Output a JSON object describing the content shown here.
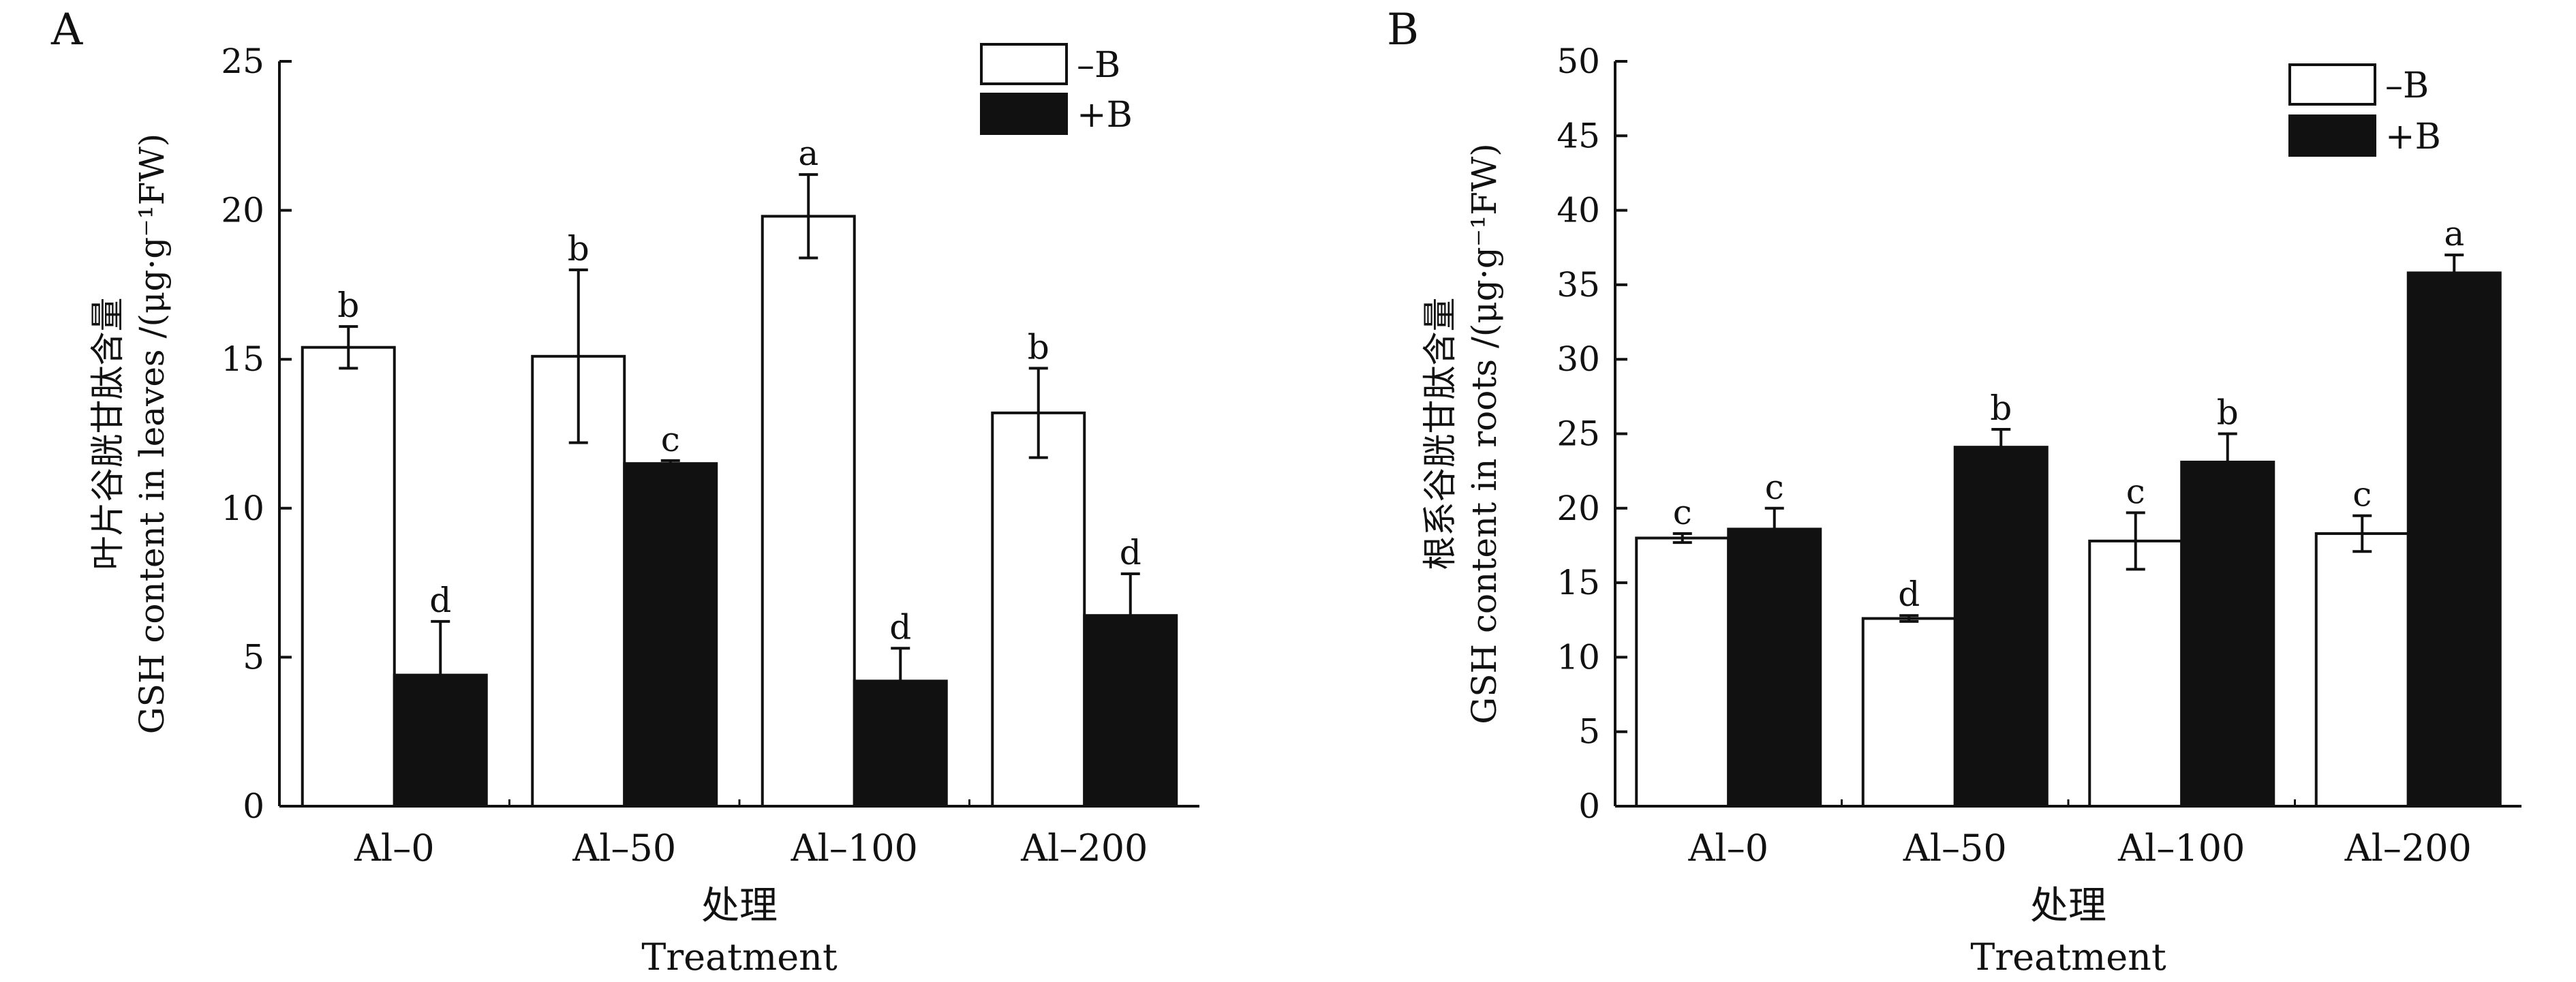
{
  "chart_data": [
    {
      "type": "bar",
      "panel_label": "A",
      "categories": [
        "Al–0",
        "Al–50",
        "Al–100",
        "Al–200"
      ],
      "series": [
        {
          "name": "–B",
          "fill": "#ffffff",
          "values": [
            15.4,
            15.1,
            19.8,
            13.2
          ],
          "errors": [
            0.7,
            2.9,
            1.4,
            1.5
          ],
          "letters": [
            "b",
            "b",
            "a",
            "b"
          ]
        },
        {
          "name": "+B",
          "fill": "#111111",
          "values": [
            4.4,
            11.5,
            4.2,
            6.4
          ],
          "errors": [
            1.8,
            0.1,
            1.1,
            1.4
          ],
          "letters": [
            "d",
            "c",
            "d",
            "d"
          ]
        }
      ],
      "ylim": [
        0,
        25
      ],
      "yticks": [
        0,
        5,
        10,
        15,
        20,
        25
      ],
      "ylabel_cn": "叶片谷胱甘肽含量",
      "ylabel_en": "GSH content in leaves /(μg·g⁻¹FW)",
      "xlabel_cn": "处理",
      "xlabel_en": "Treatment",
      "legend_position": "top-right",
      "grid": false
    },
    {
      "type": "bar",
      "panel_label": "B",
      "categories": [
        "Al–0",
        "Al–50",
        "Al–100",
        "Al–200"
      ],
      "series": [
        {
          "name": "–B",
          "fill": "#ffffff",
          "values": [
            18.0,
            12.6,
            17.8,
            18.3
          ],
          "errors": [
            0.3,
            0.2,
            1.9,
            1.2
          ],
          "letters": [
            "c",
            "d",
            "c",
            "c"
          ]
        },
        {
          "name": "+B",
          "fill": "#111111",
          "values": [
            18.6,
            24.1,
            23.1,
            35.8
          ],
          "errors": [
            1.4,
            1.2,
            1.9,
            1.2
          ],
          "letters": [
            "c",
            "b",
            "b",
            "a"
          ]
        }
      ],
      "ylim": [
        0,
        50
      ],
      "yticks": [
        0,
        5,
        10,
        15,
        20,
        25,
        30,
        35,
        40,
        45,
        50
      ],
      "ylabel_cn": "根系谷胱甘肽含量",
      "ylabel_en": "GSH content in roots /(μg·g⁻¹FW)",
      "xlabel_cn": "处理",
      "xlabel_en": "Treatment",
      "legend_position": "top-right",
      "grid": false
    }
  ]
}
